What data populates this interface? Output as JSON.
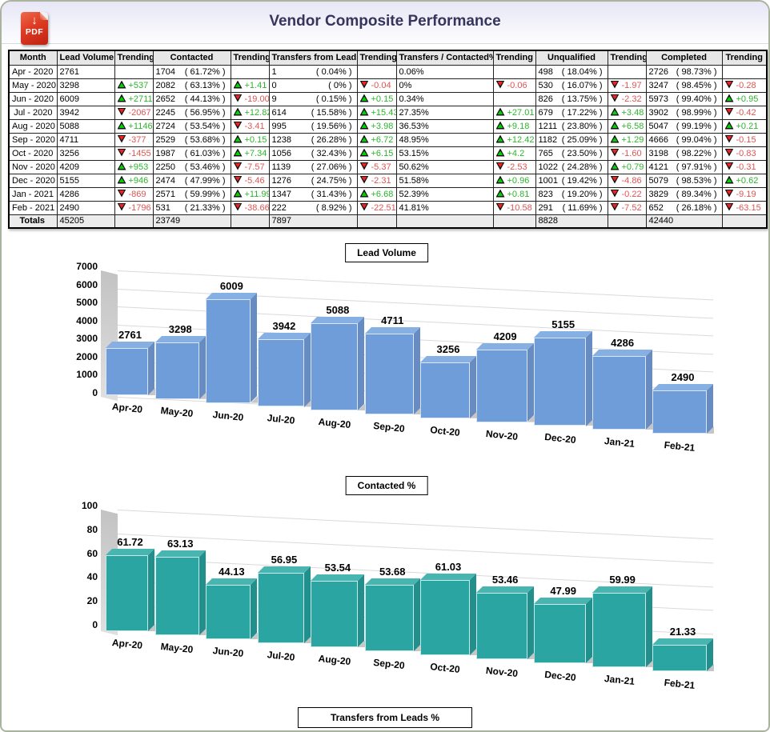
{
  "header": {
    "title": "Vendor Composite Performance",
    "pdf_label": "PDF",
    "pdf_arrow": "↓"
  },
  "colors": {
    "trend_green_text": "#2db52d",
    "trend_red_text": "#e05454",
    "trend_green_icon": "#00d300",
    "trend_red_icon": "#ee2222",
    "bar_blue": "#6f9dda",
    "bar_teal": "#2aa5a2",
    "title_color": "#35355c"
  },
  "table": {
    "columns": [
      {
        "key": "month",
        "type": "month",
        "label": "Month"
      },
      {
        "key": "lead_volume",
        "type": "num",
        "label": "Lead Volume"
      },
      {
        "key": "lead_volume_trend",
        "type": "trend",
        "label": "Trending"
      },
      {
        "key": "contacted",
        "type": "numpct",
        "label": "Contacted"
      },
      {
        "key": "contacted_trend",
        "type": "trend",
        "label": "Trending"
      },
      {
        "key": "transfers",
        "type": "numpct",
        "label": "Transfers from Leads"
      },
      {
        "key": "transfers_trend",
        "type": "trend",
        "label": "Trending"
      },
      {
        "key": "transfers_contacted",
        "type": "num",
        "label": "Transfers / Contacted%"
      },
      {
        "key": "transfers_contacted_trend",
        "type": "trend",
        "label": "Trending"
      },
      {
        "key": "unqualified",
        "type": "numpct",
        "label": "Unqualified"
      },
      {
        "key": "unqualified_trend",
        "type": "trend",
        "label": "Trending"
      },
      {
        "key": "completed",
        "type": "numpct",
        "label": "Completed"
      },
      {
        "key": "completed_trend",
        "type": "trend",
        "label": "Trending"
      }
    ],
    "rows": [
      {
        "month": "Apr - 2020",
        "lead_volume": "2761",
        "lead_volume_trend": "",
        "contacted": [
          "1704",
          "( 61.72% )"
        ],
        "contacted_trend": "",
        "transfers": [
          "1",
          "( 0.04% )"
        ],
        "transfers_trend": "",
        "transfers_contacted": "0.06%",
        "transfers_contacted_trend": "",
        "unqualified": [
          "498",
          "( 18.04% )"
        ],
        "unqualified_trend": "",
        "completed": [
          "2726",
          "( 98.73% )"
        ],
        "completed_trend": ""
      },
      {
        "month": "May - 2020",
        "lead_volume": "3298",
        "lead_volume_trend": "+537",
        "contacted": [
          "2082",
          "( 63.13% )"
        ],
        "contacted_trend": "+1.41",
        "transfers": [
          "0",
          "( 0% )"
        ],
        "transfers_trend": "-0.04",
        "transfers_contacted": "0%",
        "transfers_contacted_trend": "-0.06",
        "unqualified": [
          "530",
          "( 16.07% )"
        ],
        "unqualified_trend": "-1.97",
        "completed": [
          "3247",
          "( 98.45% )"
        ],
        "completed_trend": "-0.28"
      },
      {
        "month": "Jun - 2020",
        "lead_volume": "6009",
        "lead_volume_trend": "+2711",
        "contacted": [
          "2652",
          "( 44.13% )"
        ],
        "contacted_trend": "-19.00",
        "transfers": [
          "9",
          "( 0.15% )"
        ],
        "transfers_trend": "+0.15",
        "transfers_contacted": "0.34%",
        "transfers_contacted_trend": "",
        "unqualified": [
          "826",
          "( 13.75% )"
        ],
        "unqualified_trend": "-2.32",
        "completed": [
          "5973",
          "( 99.40% )"
        ],
        "completed_trend": "+0.95"
      },
      {
        "month": "Jul - 2020",
        "lead_volume": "3942",
        "lead_volume_trend": "-2067",
        "contacted": [
          "2245",
          "( 56.95% )"
        ],
        "contacted_trend": "+12.82",
        "transfers": [
          "614",
          "( 15.58% )"
        ],
        "transfers_trend": "+15.43",
        "transfers_contacted": "27.35%",
        "transfers_contacted_trend": "+27.01",
        "unqualified": [
          "679",
          "( 17.22% )"
        ],
        "unqualified_trend": "+3.48",
        "completed": [
          "3902",
          "( 98.99% )"
        ],
        "completed_trend": "-0.42"
      },
      {
        "month": "Aug - 2020",
        "lead_volume": "5088",
        "lead_volume_trend": "+1146",
        "contacted": [
          "2724",
          "( 53.54% )"
        ],
        "contacted_trend": "-3.41",
        "transfers": [
          "995",
          "( 19.56% )"
        ],
        "transfers_trend": "+3.98",
        "transfers_contacted": "36.53%",
        "transfers_contacted_trend": "+9.18",
        "unqualified": [
          "1211",
          "( 23.80% )"
        ],
        "unqualified_trend": "+6.58",
        "completed": [
          "5047",
          "( 99.19% )"
        ],
        "completed_trend": "+0.21"
      },
      {
        "month": "Sep - 2020",
        "lead_volume": "4711",
        "lead_volume_trend": "-377",
        "contacted": [
          "2529",
          "( 53.68% )"
        ],
        "contacted_trend": "+0.15",
        "transfers": [
          "1238",
          "( 26.28% )"
        ],
        "transfers_trend": "+6.72",
        "transfers_contacted": "48.95%",
        "transfers_contacted_trend": "+12.42",
        "unqualified": [
          "1182",
          "( 25.09% )"
        ],
        "unqualified_trend": "+1.29",
        "completed": [
          "4666",
          "( 99.04% )"
        ],
        "completed_trend": "-0.15"
      },
      {
        "month": "Oct - 2020",
        "lead_volume": "3256",
        "lead_volume_trend": "-1455",
        "contacted": [
          "1987",
          "( 61.03% )"
        ],
        "contacted_trend": "+7.34",
        "transfers": [
          "1056",
          "( 32.43% )"
        ],
        "transfers_trend": "+6.15",
        "transfers_contacted": "53.15%",
        "transfers_contacted_trend": "+4.2",
        "unqualified": [
          "765",
          "( 23.50% )"
        ],
        "unqualified_trend": "-1.60",
        "completed": [
          "3198",
          "( 98.22% )"
        ],
        "completed_trend": "-0.83"
      },
      {
        "month": "Nov - 2020",
        "lead_volume": "4209",
        "lead_volume_trend": "+953",
        "contacted": [
          "2250",
          "( 53.46% )"
        ],
        "contacted_trend": "-7.57",
        "transfers": [
          "1139",
          "( 27.06% )"
        ],
        "transfers_trend": "-5.37",
        "transfers_contacted": "50.62%",
        "transfers_contacted_trend": "-2.53",
        "unqualified": [
          "1022",
          "( 24.28% )"
        ],
        "unqualified_trend": "+0.79",
        "completed": [
          "4121",
          "( 97.91% )"
        ],
        "completed_trend": "-0.31"
      },
      {
        "month": "Dec - 2020",
        "lead_volume": "5155",
        "lead_volume_trend": "+946",
        "contacted": [
          "2474",
          "( 47.99% )"
        ],
        "contacted_trend": "-5.46",
        "transfers": [
          "1276",
          "( 24.75% )"
        ],
        "transfers_trend": "-2.31",
        "transfers_contacted": "51.58%",
        "transfers_contacted_trend": "+0.96",
        "unqualified": [
          "1001",
          "( 19.42% )"
        ],
        "unqualified_trend": "-4.86",
        "completed": [
          "5079",
          "( 98.53% )"
        ],
        "completed_trend": "+0.62"
      },
      {
        "month": "Jan - 2021",
        "lead_volume": "4286",
        "lead_volume_trend": "-869",
        "contacted": [
          "2571",
          "( 59.99% )"
        ],
        "contacted_trend": "+11.99",
        "transfers": [
          "1347",
          "( 31.43% )"
        ],
        "transfers_trend": "+6.68",
        "transfers_contacted": "52.39%",
        "transfers_contacted_trend": "+0.81",
        "unqualified": [
          "823",
          "( 19.20% )"
        ],
        "unqualified_trend": "-0.22",
        "completed": [
          "3829",
          "( 89.34% )"
        ],
        "completed_trend": "-9.19"
      },
      {
        "month": "Feb - 2021",
        "lead_volume": "2490",
        "lead_volume_trend": "-1796",
        "contacted": [
          "531",
          "( 21.33% )"
        ],
        "contacted_trend": "-38.66",
        "transfers": [
          "222",
          "( 8.92% )"
        ],
        "transfers_trend": "-22.51",
        "transfers_contacted": "41.81%",
        "transfers_contacted_trend": "-10.58",
        "unqualified": [
          "291",
          "( 11.69% )"
        ],
        "unqualified_trend": "-7.52",
        "completed": [
          "652",
          "( 26.18% )"
        ],
        "completed_trend": "-63.15"
      }
    ],
    "totals": {
      "month": "Totals",
      "lead_volume": "45205",
      "contacted": "23749",
      "transfers": "7897",
      "transfers_contacted": "",
      "unqualified": "8828",
      "completed": "42440"
    }
  },
  "chart_data": [
    {
      "type": "bar",
      "style": "3d",
      "title": "Lead Volume",
      "categories": [
        "Apr-20",
        "May-20",
        "Jun-20",
        "Jul-20",
        "Aug-20",
        "Sep-20",
        "Oct-20",
        "Nov-20",
        "Dec-20",
        "Jan-21",
        "Feb-21"
      ],
      "values": [
        2761,
        3298,
        6009,
        3942,
        5088,
        4711,
        3256,
        4209,
        5155,
        4286,
        2490
      ],
      "value_labels": [
        "2761",
        "3298",
        "6009",
        "3942",
        "5088",
        "4711",
        "3256",
        "4209",
        "5155",
        "4286",
        "2490"
      ],
      "xlabel": "",
      "ylabel": "",
      "ylim": [
        0,
        7000
      ],
      "yticks": [
        7000,
        6000,
        5000,
        4000,
        3000,
        2000,
        1000,
        0
      ],
      "grid": true,
      "legend": "none",
      "bar_color": "#6f9dda",
      "bar_top_color": "#86afe3",
      "bar_side_color": "#678cc4"
    },
    {
      "type": "bar",
      "style": "3d",
      "title": "Contacted %",
      "categories": [
        "Apr-20",
        "May-20",
        "Jun-20",
        "Jul-20",
        "Aug-20",
        "Sep-20",
        "Oct-20",
        "Nov-20",
        "Dec-20",
        "Jan-21",
        "Feb-21"
      ],
      "values": [
        61.72,
        63.13,
        44.13,
        56.95,
        53.54,
        53.68,
        61.03,
        53.46,
        47.99,
        59.99,
        21.33
      ],
      "value_labels": [
        "61.72",
        "63.13",
        "44.13",
        "56.95",
        "53.54",
        "53.68",
        "61.03",
        "53.46",
        "47.99",
        "59.99",
        "21.33"
      ],
      "xlabel": "",
      "ylabel": "",
      "ylim": [
        0,
        100
      ],
      "yticks": [
        100,
        80,
        60,
        40,
        20,
        0
      ],
      "grid": true,
      "legend": "none",
      "bar_color": "#2aa5a2",
      "bar_top_color": "#48b5b0",
      "bar_side_color": "#218f8c"
    },
    {
      "type": "bar",
      "style": "3d",
      "title": "Transfers from Leads %",
      "note": "only title visible at bottom edge of screenshot"
    }
  ]
}
